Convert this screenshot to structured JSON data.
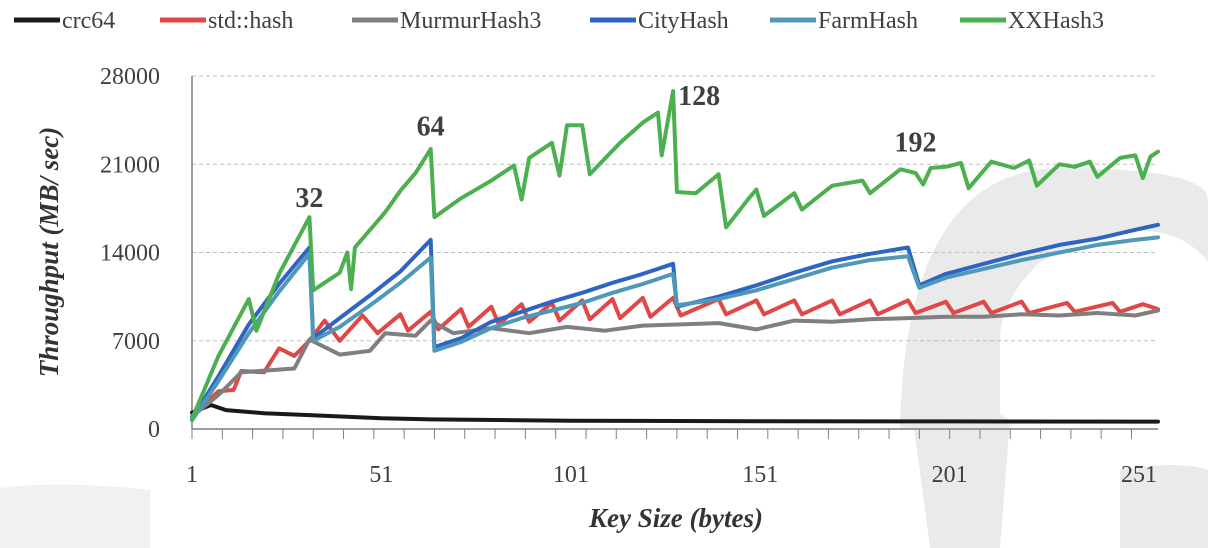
{
  "chart_data": {
    "type": "line",
    "xlabel": "Key Size (bytes)",
    "ylabel": "Throughput (MB/ sec)",
    "xlim": [
      1,
      256
    ],
    "ylim": [
      0,
      28000
    ],
    "x_ticks": [
      1,
      51,
      101,
      151,
      201,
      251
    ],
    "y_ticks": [
      0,
      7000,
      14000,
      21000,
      28000
    ],
    "grid": "horizontal dashed",
    "legend_position": "top",
    "annotations": [
      {
        "text": "32",
        "x": 32,
        "y": 16800
      },
      {
        "text": "64",
        "x": 64,
        "y": 22500
      },
      {
        "text": "128",
        "x": 128,
        "y": 26800
      },
      {
        "text": "192",
        "x": 192,
        "y": 21200
      }
    ],
    "series": [
      {
        "name": "crc64",
        "color": "#1a1a1a",
        "points": [
          [
            1,
            1300
          ],
          [
            6,
            1900
          ],
          [
            10,
            1500
          ],
          [
            20,
            1250
          ],
          [
            32,
            1100
          ],
          [
            51,
            850
          ],
          [
            64,
            760
          ],
          [
            101,
            660
          ],
          [
            151,
            620
          ],
          [
            201,
            600
          ],
          [
            256,
            590
          ]
        ]
      },
      {
        "name": "std::hash",
        "color": "#e04848",
        "points": [
          [
            1,
            1000
          ],
          [
            8,
            3000
          ],
          [
            12,
            3100
          ],
          [
            14,
            4600
          ],
          [
            20,
            4500
          ],
          [
            24,
            6400
          ],
          [
            28,
            5800
          ],
          [
            32,
            7000
          ],
          [
            36,
            8600
          ],
          [
            40,
            7000
          ],
          [
            46,
            9000
          ],
          [
            50,
            7600
          ],
          [
            56,
            9100
          ],
          [
            58,
            7800
          ],
          [
            64,
            9300
          ],
          [
            66,
            7900
          ],
          [
            72,
            9500
          ],
          [
            74,
            8100
          ],
          [
            80,
            9700
          ],
          [
            82,
            8300
          ],
          [
            88,
            9900
          ],
          [
            90,
            8500
          ],
          [
            96,
            10000
          ],
          [
            98,
            8600
          ],
          [
            104,
            10200
          ],
          [
            106,
            8700
          ],
          [
            112,
            10300
          ],
          [
            114,
            8800
          ],
          [
            120,
            10400
          ],
          [
            122,
            8900
          ],
          [
            128,
            10400
          ],
          [
            130,
            9000
          ],
          [
            140,
            10300
          ],
          [
            142,
            9100
          ],
          [
            150,
            10200
          ],
          [
            152,
            9100
          ],
          [
            160,
            10200
          ],
          [
            162,
            9100
          ],
          [
            170,
            10200
          ],
          [
            172,
            9100
          ],
          [
            180,
            10200
          ],
          [
            182,
            9100
          ],
          [
            190,
            10200
          ],
          [
            192,
            9200
          ],
          [
            200,
            10100
          ],
          [
            202,
            9200
          ],
          [
            210,
            10100
          ],
          [
            212,
            9200
          ],
          [
            220,
            10100
          ],
          [
            222,
            9200
          ],
          [
            232,
            10000
          ],
          [
            234,
            9300
          ],
          [
            244,
            10000
          ],
          [
            246,
            9300
          ],
          [
            252,
            9900
          ],
          [
            256,
            9500
          ]
        ]
      },
      {
        "name": "MurmurHash3",
        "color": "#7f7f7f",
        "points": [
          [
            1,
            1000
          ],
          [
            8,
            2700
          ],
          [
            14,
            4500
          ],
          [
            28,
            4800
          ],
          [
            32,
            7100
          ],
          [
            40,
            5900
          ],
          [
            48,
            6200
          ],
          [
            52,
            7600
          ],
          [
            60,
            7400
          ],
          [
            64,
            8600
          ],
          [
            70,
            7600
          ],
          [
            80,
            8000
          ],
          [
            90,
            7600
          ],
          [
            100,
            8100
          ],
          [
            110,
            7800
          ],
          [
            120,
            8200
          ],
          [
            130,
            8300
          ],
          [
            140,
            8400
          ],
          [
            150,
            7900
          ],
          [
            160,
            8600
          ],
          [
            170,
            8500
          ],
          [
            180,
            8700
          ],
          [
            190,
            8800
          ],
          [
            200,
            8900
          ],
          [
            210,
            8900
          ],
          [
            220,
            9100
          ],
          [
            230,
            9000
          ],
          [
            240,
            9200
          ],
          [
            250,
            9000
          ],
          [
            256,
            9400
          ]
        ]
      },
      {
        "name": "CityHash",
        "color": "#2e64c2",
        "points": [
          [
            1,
            800
          ],
          [
            8,
            4200
          ],
          [
            16,
            8300
          ],
          [
            24,
            11500
          ],
          [
            32,
            14400
          ],
          [
            33,
            7200
          ],
          [
            40,
            8800
          ],
          [
            48,
            10600
          ],
          [
            56,
            12500
          ],
          [
            64,
            15000
          ],
          [
            65,
            6500
          ],
          [
            72,
            7200
          ],
          [
            80,
            8500
          ],
          [
            88,
            9300
          ],
          [
            96,
            10100
          ],
          [
            104,
            10800
          ],
          [
            112,
            11600
          ],
          [
            120,
            12300
          ],
          [
            128,
            13100
          ],
          [
            129,
            9700
          ],
          [
            140,
            10500
          ],
          [
            150,
            11400
          ],
          [
            160,
            12400
          ],
          [
            170,
            13300
          ],
          [
            180,
            13900
          ],
          [
            190,
            14400
          ],
          [
            193,
            11400
          ],
          [
            200,
            12300
          ],
          [
            210,
            13100
          ],
          [
            220,
            13900
          ],
          [
            230,
            14600
          ],
          [
            240,
            15100
          ],
          [
            250,
            15800
          ],
          [
            256,
            16200
          ]
        ]
      },
      {
        "name": "FarmHash",
        "color": "#4f98b8",
        "points": [
          [
            1,
            700
          ],
          [
            8,
            3800
          ],
          [
            16,
            7600
          ],
          [
            24,
            10900
          ],
          [
            32,
            13900
          ],
          [
            33,
            7000
          ],
          [
            40,
            8100
          ],
          [
            48,
            9800
          ],
          [
            56,
            11600
          ],
          [
            64,
            13600
          ],
          [
            65,
            6200
          ],
          [
            72,
            6900
          ],
          [
            80,
            8000
          ],
          [
            88,
            8800
          ],
          [
            96,
            9400
          ],
          [
            104,
            10000
          ],
          [
            112,
            10800
          ],
          [
            120,
            11500
          ],
          [
            128,
            12300
          ],
          [
            129,
            9800
          ],
          [
            140,
            10300
          ],
          [
            150,
            11000
          ],
          [
            160,
            11900
          ],
          [
            170,
            12800
          ],
          [
            180,
            13400
          ],
          [
            190,
            13700
          ],
          [
            193,
            11200
          ],
          [
            200,
            12000
          ],
          [
            210,
            12700
          ],
          [
            220,
            13400
          ],
          [
            230,
            14000
          ],
          [
            240,
            14600
          ],
          [
            250,
            15000
          ],
          [
            256,
            15200
          ]
        ]
      },
      {
        "name": "XXHash3",
        "color": "#4caf50",
        "points": [
          [
            1,
            800
          ],
          [
            8,
            5800
          ],
          [
            16,
            10300
          ],
          [
            18,
            7800
          ],
          [
            24,
            12300
          ],
          [
            32,
            16800
          ],
          [
            33,
            11000
          ],
          [
            40,
            12400
          ],
          [
            42,
            14000
          ],
          [
            43,
            11100
          ],
          [
            44,
            14400
          ],
          [
            52,
            17200
          ],
          [
            56,
            18900
          ],
          [
            60,
            20300
          ],
          [
            64,
            22200
          ],
          [
            65,
            16800
          ],
          [
            72,
            18300
          ],
          [
            80,
            19700
          ],
          [
            86,
            20900
          ],
          [
            88,
            18200
          ],
          [
            90,
            21500
          ],
          [
            96,
            22700
          ],
          [
            98,
            20100
          ],
          [
            100,
            24100
          ],
          [
            104,
            24100
          ],
          [
            106,
            20200
          ],
          [
            114,
            22700
          ],
          [
            120,
            24300
          ],
          [
            124,
            25100
          ],
          [
            125,
            21700
          ],
          [
            128,
            26800
          ],
          [
            129,
            18800
          ],
          [
            134,
            18700
          ],
          [
            140,
            20200
          ],
          [
            142,
            16000
          ],
          [
            148,
            18300
          ],
          [
            150,
            19000
          ],
          [
            152,
            16900
          ],
          [
            160,
            18700
          ],
          [
            162,
            17400
          ],
          [
            170,
            19300
          ],
          [
            178,
            19700
          ],
          [
            180,
            18700
          ],
          [
            188,
            20600
          ],
          [
            192,
            20300
          ],
          [
            194,
            19400
          ],
          [
            196,
            20700
          ],
          [
            200,
            20800
          ],
          [
            204,
            21100
          ],
          [
            206,
            19100
          ],
          [
            212,
            21200
          ],
          [
            218,
            20700
          ],
          [
            222,
            21300
          ],
          [
            224,
            19300
          ],
          [
            230,
            21000
          ],
          [
            234,
            20800
          ],
          [
            238,
            21200
          ],
          [
            240,
            20000
          ],
          [
            246,
            21500
          ],
          [
            250,
            21700
          ],
          [
            252,
            19900
          ],
          [
            254,
            21600
          ],
          [
            256,
            22000
          ]
        ]
      }
    ]
  }
}
